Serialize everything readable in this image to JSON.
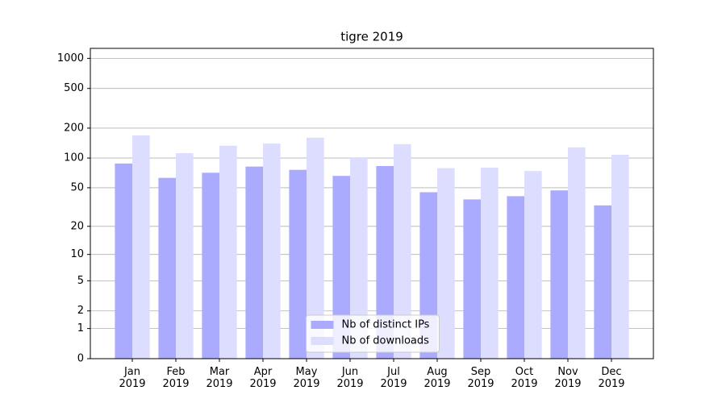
{
  "chart_data": {
    "type": "bar",
    "title": "tigre 2019",
    "categories": [
      "Jan\n2019",
      "Feb\n2019",
      "Mar\n2019",
      "Apr\n2019",
      "May\n2019",
      "Jun\n2019",
      "Jul\n2019",
      "Aug\n2019",
      "Sep\n2019",
      "Oct\n2019",
      "Nov\n2019",
      "Dec\n2019"
    ],
    "series": [
      {
        "name": "Nb of distinct IPs",
        "color": "#aaaaff",
        "values": [
          88,
          63,
          71,
          82,
          76,
          66,
          83,
          45,
          38,
          41,
          47,
          33
        ]
      },
      {
        "name": "Nb of downloads",
        "color": "#ddddff",
        "values": [
          169,
          112,
          133,
          140,
          160,
          102,
          138,
          79,
          80,
          74,
          128,
          108
        ]
      }
    ],
    "yscale": "log1p",
    "ylim": [
      0,
      1258
    ],
    "yticks": [
      0,
      1,
      2,
      5,
      10,
      20,
      50,
      100,
      200,
      500,
      1000
    ],
    "grid": true,
    "legend": "lower center"
  }
}
